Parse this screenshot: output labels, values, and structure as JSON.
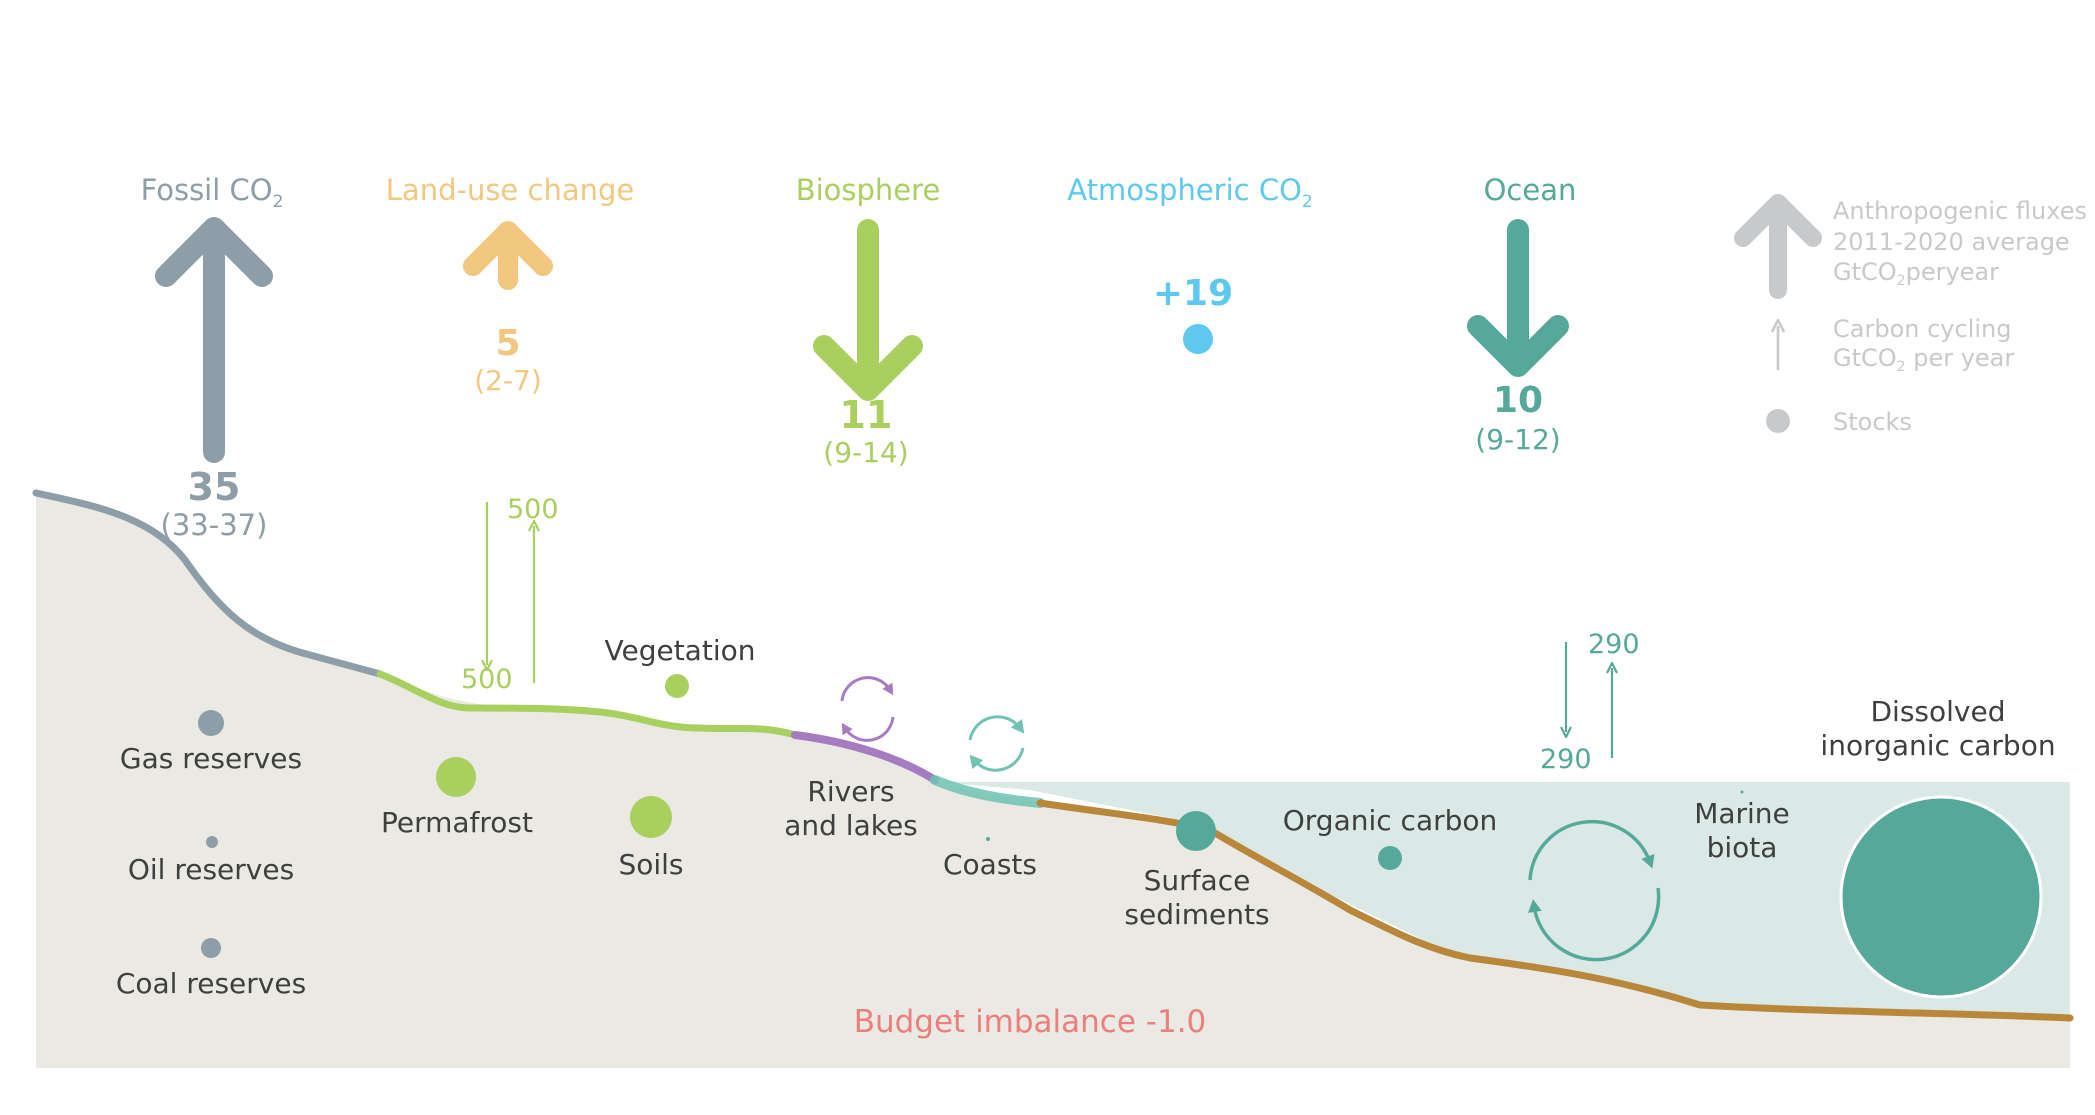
{
  "headers": {
    "fossil": "Fossil CO",
    "fossil_sub": "2",
    "landuse": "Land-use change",
    "biosphere": "Biosphere",
    "atmospheric": "Atmospheric CO",
    "atmospheric_sub": "2",
    "ocean": "Ocean"
  },
  "fluxes": {
    "fossil": {
      "value": "35",
      "range": "(33-37)"
    },
    "landuse": {
      "value": "5",
      "range": "(2-7)"
    },
    "biosphere": {
      "value": "11",
      "range": "(9-14)"
    },
    "atmospheric": {
      "value": "+19"
    },
    "ocean": {
      "value": "10",
      "range": "(9-12)"
    }
  },
  "legend": {
    "anthropogenic_1": "Anthropogenic fluxes",
    "anthropogenic_2": "2011-2020  average",
    "anthropogenic_3a": "GtCO",
    "anthropogenic_3sub": "2",
    "anthropogenic_3b": "peryear",
    "cycling_1": "Carbon cycling",
    "cycling_2a": "GtCO",
    "cycling_2sub": "2",
    "cycling_2b": " per year",
    "stocks": "Stocks"
  },
  "cycling": {
    "land_down": "500",
    "land_up": "500",
    "ocean_down": "290",
    "ocean_up": "290"
  },
  "stocks": {
    "gas": "Gas reserves",
    "oil": "Oil reserves",
    "coal": "Coal reserves",
    "permafrost": "Permafrost",
    "vegetation": "Vegetation",
    "soils": "Soils",
    "rivers_1": "Rivers",
    "rivers_2": "and lakes",
    "coasts": "Coasts",
    "surface_1": "Surface",
    "surface_2": "sediments",
    "organic": "Organic carbon",
    "marine_1": "Marine",
    "marine_2": "biota",
    "dissolved_1": "Dissolved",
    "dissolved_2": "inorganic carbon"
  },
  "budget_imbalance": "Budget imbalance -1.0",
  "colors": {
    "fossil": "#8d9ea8",
    "landuse": "#f2c77f",
    "biosphere": "#a9cf5e",
    "atmospheric": "#5fc8ef",
    "ocean": "#56a99a",
    "legend_grey": "#c8c9cb",
    "ground": "#ebe9e3",
    "sea": "#dbe9e6",
    "sediment": "#b8873a",
    "rivers": "#a57cc0",
    "budget": "#ec7f7b",
    "label_dark": "#3f3f3f"
  }
}
